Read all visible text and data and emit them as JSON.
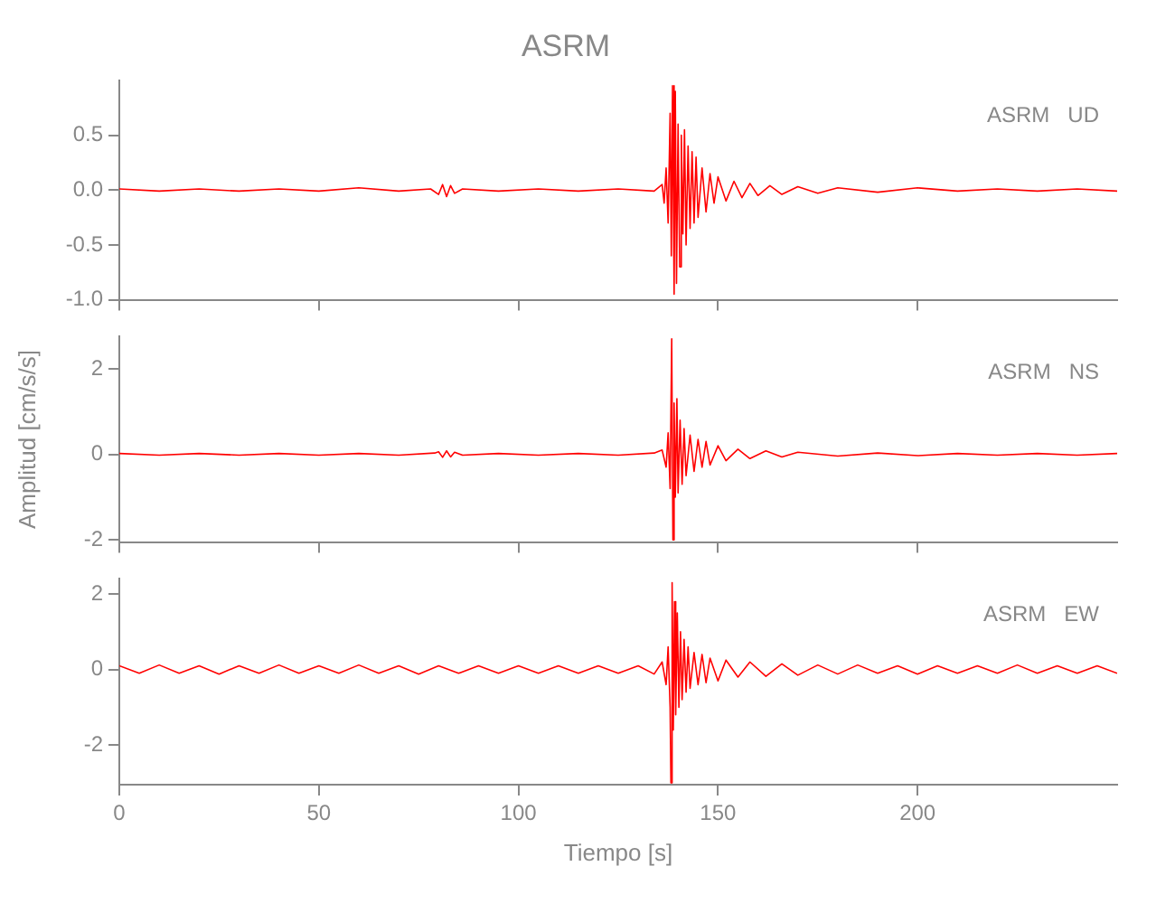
{
  "chart_data": [
    {
      "type": "line",
      "title": "ASRM",
      "annotations": [
        "ASRM   UD"
      ],
      "xlim": [
        0,
        250
      ],
      "xticks": [
        0,
        50,
        100,
        150,
        200
      ],
      "ylim": [
        -1.0,
        1.0
      ],
      "yticks": [
        {
          "value": -1.0,
          "label": "-1.0"
        },
        {
          "value": -0.5,
          "label": "-0.5"
        },
        {
          "value": 0,
          "label": "0.0"
        },
        {
          "value": 0.5,
          "label": "0.5"
        }
      ],
      "tick_labels": "y",
      "marker": "none",
      "series": [
        {
          "color": "#ff0000",
          "x": [
            0,
            10,
            20,
            30,
            40,
            50,
            60,
            70,
            78,
            80,
            81,
            82,
            83,
            84,
            86,
            95,
            105,
            115,
            125,
            134,
            136,
            136.5,
            137,
            137.5,
            138,
            138.3,
            138.6,
            139,
            139.3,
            139.6,
            140,
            140.4,
            140.8,
            141.2,
            141.6,
            142,
            142.5,
            143,
            143.5,
            144,
            144.5,
            145,
            146,
            147,
            148,
            149,
            150,
            152,
            154,
            156,
            158,
            160,
            163,
            166,
            170,
            175,
            180,
            190,
            200,
            210,
            220,
            230,
            240,
            250
          ],
          "values": [
            0.01,
            -0.01,
            0.01,
            -0.01,
            0.01,
            -0.01,
            0.02,
            -0.01,
            0.01,
            -0.04,
            0.05,
            -0.06,
            0.04,
            -0.03,
            0.01,
            -0.01,
            0.01,
            -0.01,
            0.01,
            -0.01,
            0.05,
            -0.12,
            0.2,
            -0.3,
            0.7,
            -0.6,
            0.95,
            -0.95,
            0.9,
            -0.85,
            0.6,
            -0.7,
            0.5,
            -0.4,
            0.55,
            -0.5,
            0.4,
            -0.35,
            0.35,
            -0.3,
            0.3,
            -0.25,
            0.2,
            -0.2,
            0.15,
            -0.12,
            0.12,
            -0.1,
            0.08,
            -0.07,
            0.06,
            -0.05,
            0.04,
            -0.04,
            0.03,
            -0.03,
            0.02,
            -0.02,
            0.02,
            -0.01,
            0.01,
            -0.01,
            0.01,
            -0.01
          ]
        }
      ]
    },
    {
      "type": "line",
      "ylabel": "Amplitud [cm/s/s]",
      "annotations": [
        "ASRM   NS"
      ],
      "xlim": [
        0,
        250
      ],
      "xticks": [
        0,
        50,
        100,
        150,
        200
      ],
      "ylim": [
        -2.05,
        2.75
      ],
      "yticks": [
        -2,
        0,
        2
      ],
      "tick_labels": "y",
      "marker": "none",
      "series": [
        {
          "color": "#ff0000",
          "x": [
            0,
            10,
            20,
            30,
            40,
            50,
            60,
            70,
            79,
            80,
            81,
            82,
            83,
            84,
            86,
            95,
            105,
            115,
            125,
            134,
            136,
            137,
            137.5,
            138,
            138.4,
            138.7,
            139,
            139.3,
            139.7,
            140,
            140.5,
            141,
            141.5,
            142,
            143,
            144,
            145,
            146,
            147,
            148,
            150,
            152,
            155,
            158,
            162,
            166,
            170,
            180,
            190,
            200,
            210,
            220,
            230,
            240,
            250
          ],
          "values": [
            0.02,
            -0.02,
            0.02,
            -0.02,
            0.02,
            -0.02,
            0.02,
            -0.02,
            0.03,
            0.06,
            -0.07,
            0.08,
            -0.06,
            0.05,
            -0.02,
            0.02,
            -0.02,
            0.02,
            -0.02,
            0.03,
            0.1,
            -0.3,
            0.5,
            -0.8,
            2.7,
            -2.0,
            1.2,
            -1.0,
            1.3,
            -0.9,
            0.8,
            -0.7,
            0.6,
            -0.5,
            0.45,
            -0.4,
            0.35,
            -0.3,
            0.3,
            -0.25,
            0.2,
            -0.15,
            0.12,
            -0.1,
            0.08,
            -0.06,
            0.05,
            -0.04,
            0.03,
            -0.03,
            0.02,
            -0.02,
            0.02,
            -0.02,
            0.02
          ]
        }
      ]
    },
    {
      "type": "line",
      "xlabel": "Tiempo [s]",
      "annotations": [
        "ASRM   EW"
      ],
      "xlim": [
        0,
        250
      ],
      "xticks": [
        0,
        50,
        100,
        150,
        200
      ],
      "ylim": [
        -3.05,
        2.4
      ],
      "yticks": [
        -2,
        0,
        2
      ],
      "marker": "none",
      "series": [
        {
          "color": "#ff0000",
          "x": [
            0,
            5,
            10,
            15,
            20,
            25,
            30,
            35,
            40,
            45,
            50,
            55,
            60,
            65,
            70,
            75,
            80,
            85,
            90,
            95,
            100,
            105,
            110,
            115,
            120,
            125,
            130,
            134,
            136,
            137,
            137.5,
            138,
            138.2,
            138.5,
            138.8,
            139.1,
            139.4,
            139.8,
            140.2,
            140.6,
            141,
            141.5,
            142,
            142.5,
            143,
            144,
            145,
            146,
            147,
            148,
            150,
            152,
            155,
            158,
            162,
            166,
            170,
            175,
            180,
            185,
            190,
            195,
            200,
            205,
            210,
            215,
            220,
            225,
            230,
            235,
            240,
            245,
            250
          ],
          "values": [
            0.1,
            -0.1,
            0.12,
            -0.1,
            0.1,
            -0.12,
            0.1,
            -0.1,
            0.12,
            -0.1,
            0.1,
            -0.1,
            0.12,
            -0.1,
            0.1,
            -0.12,
            0.1,
            -0.1,
            0.1,
            -0.1,
            0.1,
            -0.1,
            0.1,
            -0.1,
            0.1,
            -0.1,
            0.1,
            -0.12,
            0.2,
            -0.4,
            0.6,
            -1.0,
            -3.0,
            2.3,
            -1.6,
            1.8,
            -1.2,
            1.5,
            -1.0,
            1.0,
            -0.8,
            0.8,
            -0.6,
            0.6,
            -0.5,
            0.45,
            -0.4,
            0.4,
            -0.35,
            0.3,
            -0.3,
            0.25,
            -0.2,
            0.2,
            -0.18,
            0.15,
            -0.15,
            0.12,
            -0.12,
            0.12,
            -0.1,
            0.1,
            -0.12,
            0.1,
            -0.1,
            0.1,
            -0.1,
            0.12,
            -0.1,
            0.1,
            -0.1,
            0.1,
            -0.1
          ]
        }
      ]
    }
  ]
}
